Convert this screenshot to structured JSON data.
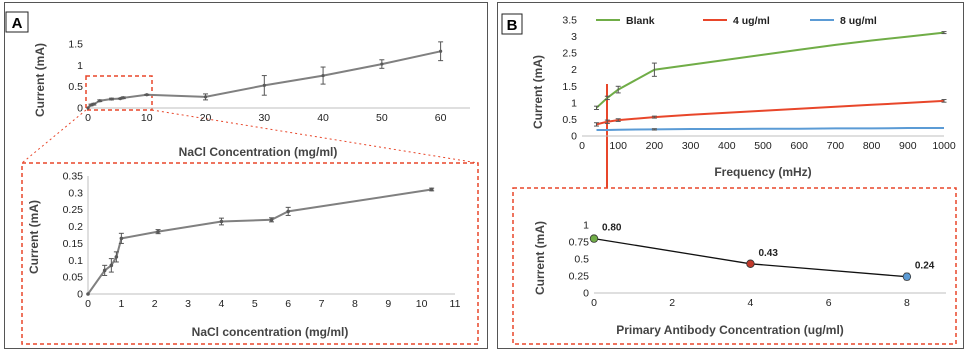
{
  "panels": {
    "a": "A",
    "b": "B"
  },
  "colors": {
    "line_gray": "#808080",
    "marker": "#595959",
    "dash": "#e8462a",
    "blank": "#70ad47",
    "c4": "#e8462a",
    "c8": "#5b9bd5",
    "p0": "#70ad47",
    "p4": "#c0392b",
    "p8": "#5b9bd5"
  },
  "chart_data": [
    {
      "id": "A_top",
      "type": "line",
      "xlabel": "NaCl Concentration (mg/ml)",
      "ylabel": "Current (mA)",
      "xlim": [
        0,
        65
      ],
      "ylim": [
        0,
        1.5
      ],
      "xticks": [
        0,
        10,
        20,
        30,
        40,
        50,
        60
      ],
      "yticks": [
        0,
        0.5,
        1,
        1.5
      ],
      "series": [
        {
          "x": [
            0,
            0.5,
            1,
            2,
            4,
            5.5,
            6,
            10,
            20,
            30,
            40,
            50,
            60
          ],
          "y": [
            0,
            0.07,
            0.09,
            0.17,
            0.21,
            0.22,
            0.24,
            0.31,
            0.26,
            0.53,
            0.76,
            1.03,
            1.33
          ],
          "err": [
            0,
            0.02,
            0.02,
            0.02,
            0.02,
            0.01,
            0.02,
            0.01,
            0.07,
            0.23,
            0.2,
            0.1,
            0.22
          ]
        }
      ]
    },
    {
      "id": "A_bottom",
      "type": "line",
      "xlabel": "NaCl concentration (mg/ml)",
      "ylabel": "Current (mA)",
      "xlim": [
        0,
        11
      ],
      "ylim": [
        0,
        0.35
      ],
      "xticks": [
        0,
        1,
        2,
        3,
        4,
        5,
        6,
        7,
        8,
        9,
        10,
        11
      ],
      "yticks": [
        0,
        0.05,
        0.1,
        0.15,
        0.2,
        0.25,
        0.3,
        0.35
      ],
      "series": [
        {
          "x": [
            0,
            0.5,
            0.7,
            0.85,
            1,
            2.1,
            4,
            5.5,
            6,
            10.3
          ],
          "y": [
            0,
            0.07,
            0.085,
            0.11,
            0.165,
            0.185,
            0.215,
            0.22,
            0.245,
            0.31
          ],
          "err": [
            0,
            0.015,
            0.02,
            0.015,
            0.015,
            0.006,
            0.01,
            0.006,
            0.012,
            0.004
          ]
        }
      ]
    },
    {
      "id": "B_top",
      "type": "line",
      "xlabel": "Frequency (mHz)",
      "ylabel": "Current (mA)",
      "xlim": [
        0,
        1000
      ],
      "ylim": [
        0,
        3.5
      ],
      "xticks": [
        0,
        100,
        200,
        300,
        400,
        500,
        600,
        700,
        800,
        900,
        1000
      ],
      "yticks": [
        0,
        0.5,
        1,
        1.5,
        2,
        2.5,
        3,
        3.5
      ],
      "legend": "top",
      "series": [
        {
          "name": "Blank",
          "x": [
            40,
            70,
            100,
            200,
            300,
            400,
            500,
            600,
            700,
            800,
            900,
            1000
          ],
          "y": [
            0.85,
            1.15,
            1.4,
            2.0,
            2.15,
            2.3,
            2.45,
            2.6,
            2.75,
            2.88,
            3.0,
            3.12
          ],
          "err": [
            0.05,
            0.05,
            0.1,
            0.2,
            0,
            0,
            0,
            0,
            0,
            0,
            0,
            0.03
          ]
        },
        {
          "name": "4 ug/ml",
          "x": [
            40,
            70,
            100,
            200,
            300,
            400,
            500,
            600,
            700,
            800,
            900,
            1000
          ],
          "y": [
            0.35,
            0.43,
            0.48,
            0.57,
            0.64,
            0.7,
            0.76,
            0.82,
            0.88,
            0.94,
            1.0,
            1.06
          ],
          "err": [
            0.05,
            0.05,
            0.04,
            0.03,
            0,
            0,
            0,
            0,
            0,
            0,
            0,
            0.04
          ]
        },
        {
          "name": "8 ug/ml",
          "x": [
            40,
            70,
            100,
            200,
            300,
            400,
            500,
            600,
            700,
            800,
            900,
            1000
          ],
          "y": [
            0.18,
            0.18,
            0.19,
            0.2,
            0.21,
            0.21,
            0.22,
            0.22,
            0.23,
            0.23,
            0.24,
            0.24
          ],
          "err": [
            0,
            0,
            0,
            0.02,
            0,
            0,
            0,
            0,
            0,
            0,
            0,
            0
          ]
        }
      ]
    },
    {
      "id": "B_bottom",
      "type": "line",
      "xlabel": "Primary Antibody Concentration (ug/ml)",
      "ylabel": "Current (mA)",
      "xlim": [
        0,
        9
      ],
      "ylim": [
        0,
        1
      ],
      "xticks": [
        0,
        2,
        4,
        6,
        8
      ],
      "yticks": [
        0,
        0.25,
        0.5,
        0.75,
        1
      ],
      "series": [
        {
          "x": [
            0,
            4,
            8
          ],
          "y": [
            0.8,
            0.43,
            0.24
          ],
          "err": [
            0.02,
            0.02,
            0.05
          ],
          "labels": [
            "0.80",
            "0.43",
            "0.24"
          ]
        }
      ]
    }
  ]
}
